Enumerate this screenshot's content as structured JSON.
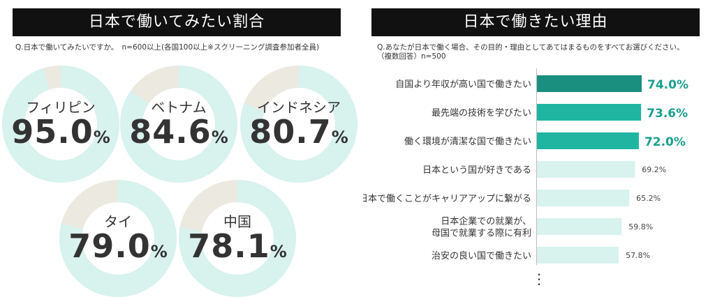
{
  "left_panel": {
    "title": "日本で働いてみたい割合",
    "question": "Q.日本で働いてみたいですか。　n=600以上(各国100以上※スクリーニング調査参加者全員)"
  },
  "right_panel": {
    "title": "日本で働きたい理由",
    "question": "Q.あなたが日本で働く場合、その目的・理由としてあてはまるものをすべてお選びください。\n（複数回答）n=500",
    "ellipsis": "⋮"
  },
  "colors": {
    "donut_fill": "#d8f2ee",
    "donut_remainder": "#ece9e1",
    "bar_dark": "#1a8f7f",
    "bar_mid": "#20b5a0",
    "bar_light": "#d8f2ee",
    "value_highlight": "#1a9f8d"
  },
  "chart_data": [
    {
      "type": "pie",
      "categories": [
        "フィリピン",
        "ベトナム",
        "インドネシア",
        "タイ",
        "中国"
      ],
      "values": [
        95.0,
        84.6,
        80.7,
        79.0,
        78.1
      ],
      "display": [
        "95.0",
        "84.6",
        "80.7",
        "79.0",
        "78.1"
      ],
      "unit": "%",
      "title": "日本で働いてみたい割合"
    },
    {
      "type": "bar",
      "orientation": "horizontal",
      "title": "日本で働きたい理由",
      "categories": [
        "自国より年収が高い国で働きたい",
        "最先端の技術を学びたい",
        "働く環境が清潔な国で働きたい",
        "日本という国が好きである",
        "日本で働くことがキャリアアップに繋がる",
        "日本企業での就業が、\n母国で就業する際に有利",
        "治安の良い国で働きたい"
      ],
      "values": [
        74.0,
        73.6,
        72.0,
        69.2,
        65.2,
        59.8,
        57.8
      ],
      "labels": [
        "74.0%",
        "73.6%",
        "72.0%",
        "69.2%",
        "65.2%",
        "59.8%",
        "57.8%"
      ],
      "highlight": [
        "dark",
        "mid",
        "mid",
        "light",
        "light",
        "light",
        "light"
      ]
    }
  ]
}
